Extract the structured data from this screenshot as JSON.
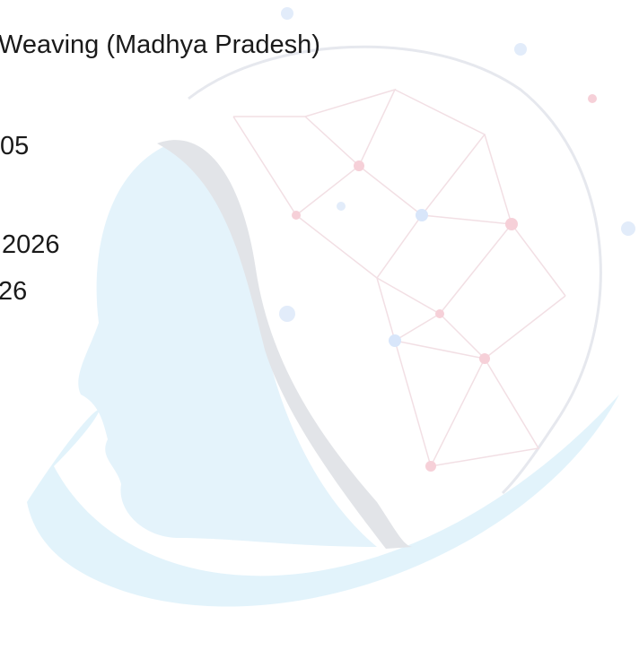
{
  "lines": [
    "Weaving (Madhya Pradesh)",
    "05",
    "2026",
    "26"
  ]
}
